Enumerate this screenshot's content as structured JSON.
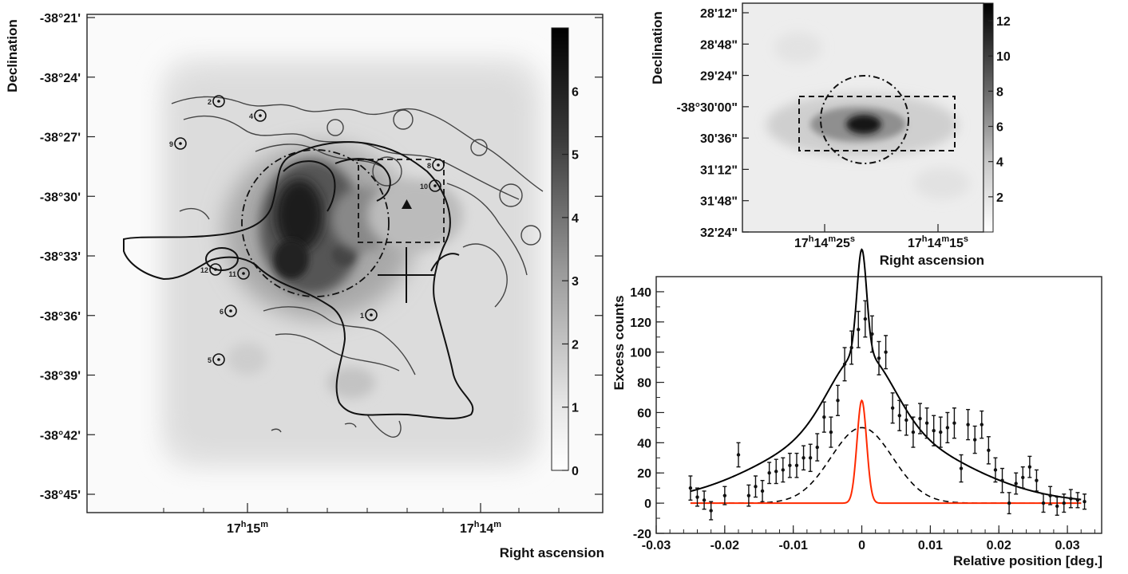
{
  "chart_data": [
    {
      "type": "heatmap",
      "xlabel": "Right ascension",
      "ylabel": "Declination",
      "y_ticks": [
        "-38°21'",
        "-38°24'",
        "-38°27'",
        "-38°30'",
        "-38°33'",
        "-38°36'",
        "-38°39'",
        "-38°42'",
        "-38°45'"
      ],
      "x_ticks": [
        {
          "h": "17",
          "m": "15",
          "s": ""
        },
        {
          "h": "17",
          "m": "14",
          "s": ""
        }
      ],
      "colorbar_ticks": [
        "0",
        "1",
        "2",
        "3",
        "4",
        "5",
        "6"
      ],
      "colorbar_range": [
        0,
        7
      ],
      "sources": [
        "1",
        "2",
        "4",
        "5",
        "6",
        "8",
        "9",
        "10",
        "11",
        "12"
      ],
      "colormap": [
        "#ffffff",
        "#000000"
      ]
    },
    {
      "type": "heatmap",
      "xlabel": "Right ascension",
      "ylabel": "Declination",
      "y_ticks": [
        "28'12\"",
        "28'48\"",
        "29'24\"",
        "-38°30'00\"",
        "30'36\"",
        "31'12\"",
        "31'48\"",
        "32'24\""
      ],
      "x_ticks": [
        {
          "h": "17",
          "m": "14",
          "s": "25"
        },
        {
          "h": "17",
          "m": "14",
          "s": "15"
        }
      ],
      "colorbar_ticks": [
        "2",
        "4",
        "6",
        "8",
        "10",
        "12"
      ],
      "colorbar_range": [
        0,
        13
      ]
    },
    {
      "type": "line",
      "xlabel": "Relative position [deg.]",
      "ylabel": "Excess counts",
      "xlim": [
        -0.03,
        0.035
      ],
      "ylim": [
        -20,
        150
      ],
      "x_ticks": [
        "-0.03",
        "-0.02",
        "-0.01",
        "0",
        "0.01",
        "0.02",
        "0.03"
      ],
      "y_ticks": [
        "-20",
        "0",
        "20",
        "40",
        "60",
        "80",
        "100",
        "120",
        "140"
      ],
      "points": [
        {
          "x": -0.025,
          "y": 10,
          "e": 8
        },
        {
          "x": -0.024,
          "y": 4,
          "e": 6
        },
        {
          "x": -0.023,
          "y": 2,
          "e": 6
        },
        {
          "x": -0.022,
          "y": -5,
          "e": 6
        },
        {
          "x": -0.02,
          "y": 5,
          "e": 6
        },
        {
          "x": -0.018,
          "y": 32,
          "e": 8
        },
        {
          "x": -0.0165,
          "y": 5,
          "e": 7
        },
        {
          "x": -0.0155,
          "y": 11,
          "e": 7
        },
        {
          "x": -0.0145,
          "y": 8,
          "e": 7
        },
        {
          "x": -0.0135,
          "y": 20,
          "e": 7
        },
        {
          "x": -0.0125,
          "y": 21,
          "e": 8
        },
        {
          "x": -0.0115,
          "y": 22,
          "e": 8
        },
        {
          "x": -0.0105,
          "y": 25,
          "e": 8
        },
        {
          "x": -0.0095,
          "y": 25,
          "e": 8
        },
        {
          "x": -0.0085,
          "y": 30,
          "e": 8
        },
        {
          "x": -0.0075,
          "y": 30,
          "e": 9
        },
        {
          "x": -0.0065,
          "y": 37,
          "e": 9
        },
        {
          "x": -0.0055,
          "y": 57,
          "e": 10
        },
        {
          "x": -0.0045,
          "y": 47,
          "e": 10
        },
        {
          "x": -0.0035,
          "y": 68,
          "e": 10
        },
        {
          "x": -0.0025,
          "y": 92,
          "e": 11
        },
        {
          "x": -0.0015,
          "y": 103,
          "e": 11
        },
        {
          "x": -0.0005,
          "y": 115,
          "e": 12
        },
        {
          "x": 0.0005,
          "y": 122,
          "e": 12
        },
        {
          "x": 0.0015,
          "y": 112,
          "e": 12
        },
        {
          "x": 0.0025,
          "y": 96,
          "e": 11
        },
        {
          "x": 0.0035,
          "y": 100,
          "e": 11
        },
        {
          "x": 0.0045,
          "y": 63,
          "e": 10
        },
        {
          "x": 0.0055,
          "y": 58,
          "e": 10
        },
        {
          "x": 0.0065,
          "y": 55,
          "e": 10
        },
        {
          "x": 0.0075,
          "y": 47,
          "e": 10
        },
        {
          "x": 0.0085,
          "y": 56,
          "e": 10
        },
        {
          "x": 0.0095,
          "y": 53,
          "e": 10
        },
        {
          "x": 0.0105,
          "y": 48,
          "e": 10
        },
        {
          "x": 0.0115,
          "y": 47,
          "e": 10
        },
        {
          "x": 0.0125,
          "y": 50,
          "e": 10
        },
        {
          "x": 0.0135,
          "y": 53,
          "e": 10
        },
        {
          "x": 0.0145,
          "y": 23,
          "e": 9
        },
        {
          "x": 0.0155,
          "y": 52,
          "e": 10
        },
        {
          "x": 0.0165,
          "y": 42,
          "e": 9
        },
        {
          "x": 0.0175,
          "y": 52,
          "e": 9
        },
        {
          "x": 0.0185,
          "y": 35,
          "e": 9
        },
        {
          "x": 0.0195,
          "y": 22,
          "e": 8
        },
        {
          "x": 0.0205,
          "y": 15,
          "e": 8
        },
        {
          "x": 0.0215,
          "y": 0,
          "e": 7
        },
        {
          "x": 0.0225,
          "y": 13,
          "e": 7
        },
        {
          "x": 0.0235,
          "y": 17,
          "e": 7
        },
        {
          "x": 0.0245,
          "y": 24,
          "e": 7
        },
        {
          "x": 0.0255,
          "y": 15,
          "e": 7
        },
        {
          "x": 0.0265,
          "y": 0,
          "e": 6
        },
        {
          "x": 0.0275,
          "y": 5,
          "e": 6
        },
        {
          "x": 0.0285,
          "y": -2,
          "e": 6
        },
        {
          "x": 0.0295,
          "y": 0,
          "e": 6
        },
        {
          "x": 0.0305,
          "y": 3,
          "e": 6
        },
        {
          "x": 0.0315,
          "y": 2,
          "e": 5
        },
        {
          "x": 0.0325,
          "y": 1,
          "e": 5
        }
      ],
      "models": {
        "total": {
          "color": "#000000",
          "dash": "solid"
        },
        "broad": {
          "color": "#000000",
          "dash": "dashed",
          "amp": 50,
          "sigma": 0.0045
        },
        "narrow": {
          "color": "#ff2a00",
          "dash": "solid",
          "amp": 68,
          "sigma": 0.0007
        },
        "wide": {
          "amp": 5,
          "sigma": 0.013
        }
      }
    }
  ]
}
